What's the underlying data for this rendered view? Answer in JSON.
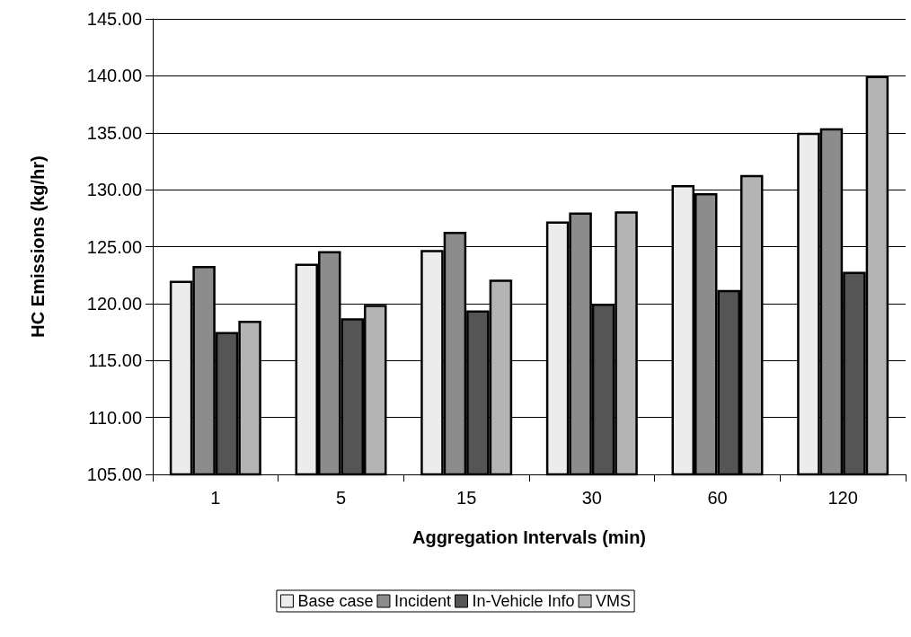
{
  "chart_data": {
    "type": "bar",
    "xlabel": "Aggregation Intervals (min)",
    "ylabel": "HC Emissions (kg/hr)",
    "categories": [
      "1",
      "5",
      "15",
      "30",
      "60",
      "120"
    ],
    "series": [
      {
        "name": "Base case",
        "color": "#ececec",
        "values": [
          122.0,
          123.5,
          124.7,
          127.2,
          130.4,
          135.0
        ]
      },
      {
        "name": "Incident",
        "color": "#8c8c8c",
        "values": [
          123.3,
          124.6,
          126.3,
          128.0,
          129.7,
          135.4
        ]
      },
      {
        "name": "In-Vehicle Info",
        "color": "#555555",
        "values": [
          117.5,
          118.7,
          119.4,
          120.0,
          121.2,
          122.8
        ]
      },
      {
        "name": "VMS",
        "color": "#b4b4b4",
        "values": [
          118.5,
          119.9,
          122.1,
          128.1,
          131.3,
          140.0
        ]
      }
    ],
    "ylim": [
      105,
      145
    ],
    "yticks": [
      {
        "value": 105,
        "label": "105.00"
      },
      {
        "value": 110,
        "label": "110.00"
      },
      {
        "value": 115,
        "label": "115.00"
      },
      {
        "value": 120,
        "label": "120.00"
      },
      {
        "value": 125,
        "label": "125.00"
      },
      {
        "value": 130,
        "label": "130.00"
      },
      {
        "value": 135,
        "label": "135.00"
      },
      {
        "value": 140,
        "label": "140.00"
      },
      {
        "value": 145,
        "label": "145.00"
      }
    ],
    "grid": "y",
    "legend": "bottom"
  }
}
